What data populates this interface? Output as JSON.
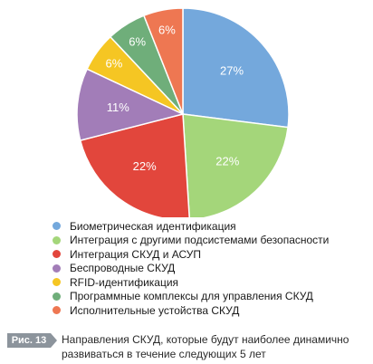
{
  "chart_data": {
    "type": "pie",
    "categories": [
      "Биометрическая идентификация",
      "Интеграция с другими подсистемами безопасности",
      "Интеграция СКУД и АСУП",
      "Беспроводные СКУД",
      "RFID-идентификация",
      "Программные комплексы для управления СКУД",
      "Исполнительные устойства СКУД"
    ],
    "values": [
      27,
      22,
      22,
      11,
      6,
      6,
      6
    ],
    "value_labels": [
      "27%",
      "22%",
      "22%",
      "11%",
      "6%",
      "6%",
      "6%"
    ],
    "colors": [
      "#74a8dc",
      "#a4d67a",
      "#e2463c",
      "#a27db8",
      "#f5c623",
      "#6fae7a",
      "#ee7752"
    ],
    "legend_placement": "bottom"
  },
  "caption": {
    "badge": "Рис. 13",
    "text": "Направления СКУД, которые будут наиболее динамично развиваться в течение следующих 5 лет"
  }
}
